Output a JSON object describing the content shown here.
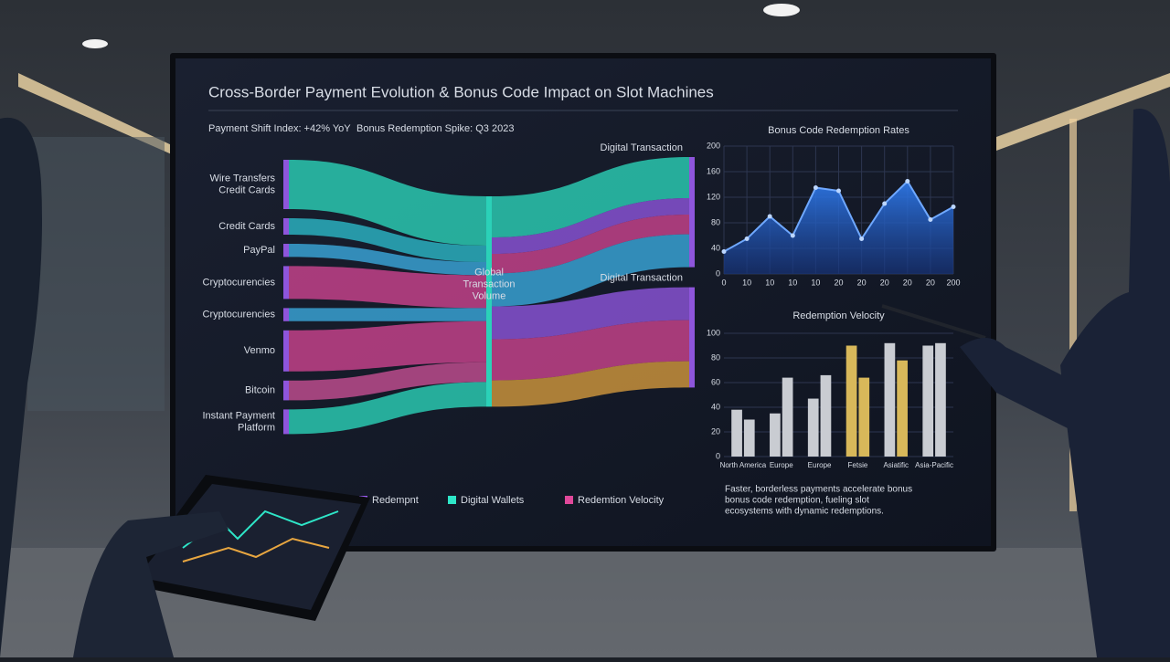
{
  "dashboard": {
    "title": "Cross-Border Payment Evolution & Bonus Code Impact on Slot Machines",
    "kpi_left": "Payment Shift Index: +42% YoY",
    "kpi_right": "Bonus Redemption Spike: Q3 2023",
    "legend": [
      {
        "name": "Redempnt",
        "color": "#9b5cf0"
      },
      {
        "name": "Digital Wallets",
        "color": "#2ee6c8"
      },
      {
        "name": "Redemtion Velocity",
        "color": "#e0489a"
      }
    ],
    "footnote": [
      "Faster, borderless payments accelerate bonus",
      "bonus code redemption, fueling slot",
      "ecosystems with dynamic redemptions."
    ]
  },
  "chart_data": [
    {
      "type": "sankey",
      "nodes": [
        {
          "label": [
            "Wire Transfers",
            "Credit Cards"
          ]
        },
        {
          "label": [
            "Credit Cards"
          ]
        },
        {
          "label": [
            "PayPal"
          ]
        },
        {
          "label": [
            "Cryptocurencies"
          ]
        },
        {
          "label": [
            "Cryptocurencies"
          ]
        },
        {
          "label": [
            "Venmo"
          ]
        },
        {
          "label": [
            "Bitcoin"
          ]
        },
        {
          "label": [
            "Instant Payment",
            "Platform"
          ]
        },
        {
          "label": [
            "Global",
            "Transaction",
            "Volume"
          ]
        },
        {
          "label": [
            "Digital Transaction"
          ]
        },
        {
          "label": [
            "Digital Transaction"
          ]
        }
      ],
      "links": [
        {
          "source": 0,
          "target": 8,
          "value": 30,
          "color": "#2ee6c8"
        },
        {
          "source": 1,
          "target": 8,
          "value": 10,
          "color": "#2ec9d8"
        },
        {
          "source": 2,
          "target": 8,
          "value": 8,
          "color": "#3fb8f0"
        },
        {
          "source": 3,
          "target": 8,
          "value": 20,
          "color": "#e0489a"
        },
        {
          "source": 4,
          "target": 8,
          "value": 8,
          "color": "#3fb8f0"
        },
        {
          "source": 5,
          "target": 8,
          "value": 25,
          "color": "#e0489a"
        },
        {
          "source": 6,
          "target": 8,
          "value": 12,
          "color": "#d9559e"
        },
        {
          "source": 7,
          "target": 8,
          "value": 15,
          "color": "#2ee6c8"
        },
        {
          "source": 8,
          "target": 9,
          "value": 25,
          "color": "#2ee6c8"
        },
        {
          "source": 8,
          "target": 9,
          "value": 10,
          "color": "#9b5cf0"
        },
        {
          "source": 8,
          "target": 9,
          "value": 12,
          "color": "#e0489a"
        },
        {
          "source": 8,
          "target": 9,
          "value": 20,
          "color": "#3fb8f0"
        },
        {
          "source": 8,
          "target": 10,
          "value": 20,
          "color": "#9b5cf0"
        },
        {
          "source": 8,
          "target": 10,
          "value": 25,
          "color": "#e0489a"
        },
        {
          "source": 8,
          "target": 10,
          "value": 16,
          "color": "#e8a640"
        }
      ]
    },
    {
      "type": "area",
      "title": "Bonus Code Redemption Rates",
      "categories": [
        "0",
        "10",
        "10",
        "10",
        "10",
        "20",
        "20",
        "20",
        "20",
        "20",
        "200"
      ],
      "values": [
        35,
        55,
        90,
        60,
        135,
        130,
        55,
        110,
        145,
        85,
        105
      ],
      "color": "#2f7cf0",
      "ylim": [
        0,
        200
      ],
      "yticks": [
        0,
        40,
        80,
        120,
        160,
        200
      ],
      "grid": true
    },
    {
      "type": "bar",
      "title": "Redemption Velocity",
      "categories": [
        "North America",
        "Europe",
        "Europe",
        "Fetsie",
        "Asiatific",
        "Asia-Pacific"
      ],
      "series": [
        {
          "values": [
            38,
            35,
            47,
            90,
            92,
            90
          ],
          "colors": [
            "#c9ccd2",
            "#c9ccd2",
            "#c9ccd2",
            "#d8b85a",
            "#c9ccd2",
            "#c9ccd2"
          ]
        },
        {
          "values": [
            30,
            64,
            66,
            64,
            78,
            92
          ],
          "colors": [
            "#c9ccd2",
            "#c9ccd2",
            "#c9ccd2",
            "#d8b85a",
            "#d8b85a",
            "#c9ccd2"
          ]
        }
      ],
      "ylim": [
        0,
        100
      ],
      "yticks": [
        0,
        20,
        40,
        60,
        80,
        100
      ],
      "grid": true
    }
  ]
}
